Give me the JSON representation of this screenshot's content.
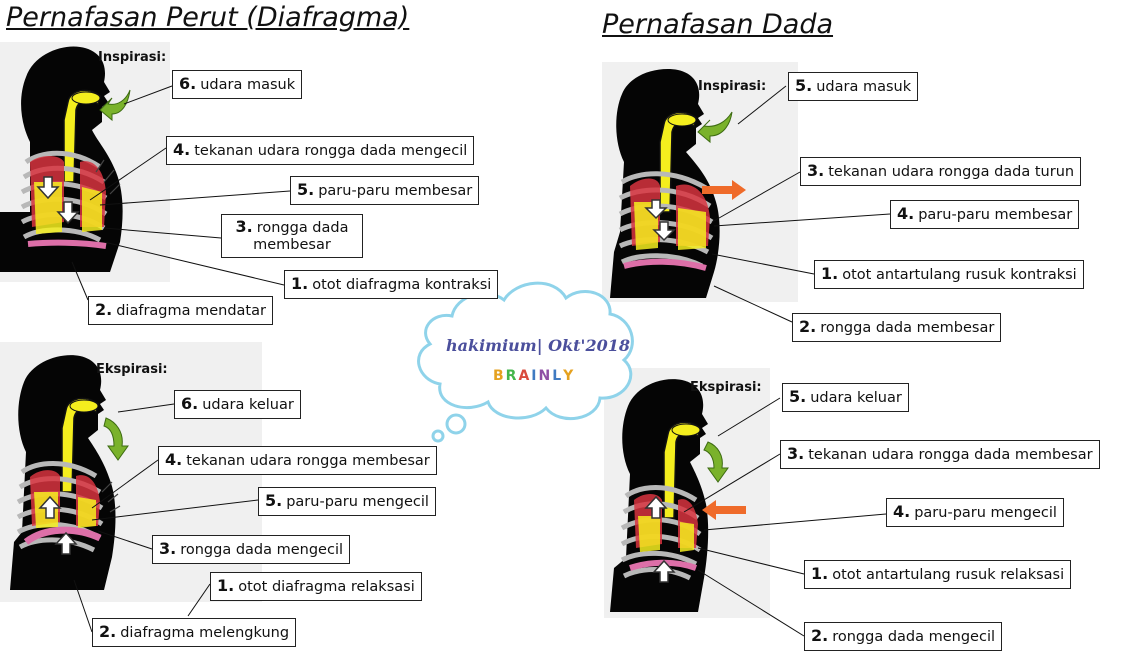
{
  "titles": {
    "left": "Pernafasan Perut (Diafragma)",
    "right": "Pernafasan Dada"
  },
  "watermark": {
    "line1": "hakimium| Okt'2018",
    "brand_letters": [
      "B",
      "R",
      "A",
      "I",
      "N",
      "L",
      "Y"
    ],
    "brand_colors": [
      "#e5a11f",
      "#43b64b",
      "#d94b3d",
      "#3f7ac2",
      "#8e4fa5",
      "#3f7ac2",
      "#e5a11f"
    ]
  },
  "colors": {
    "airway": "#f4ee1e",
    "lung": "#d8343f",
    "diaphragm": "#dd6fa8",
    "rib": "#b8b8b8",
    "arrow_green": "#7ab22b",
    "arrow_orange": "#ef6b2a",
    "silhouette": "#050505"
  },
  "panels": {
    "perut_inspirasi": {
      "phase": "Inspirasi:",
      "labels": [
        {
          "num": "6.",
          "text": "udara masuk"
        },
        {
          "num": "4.",
          "text": "tekanan udara rongga dada mengecil"
        },
        {
          "num": "5.",
          "text": "paru-paru membesar"
        },
        {
          "num": "3.",
          "text": "rongga dada membesar"
        },
        {
          "num": "1.",
          "text": "otot diafragma kontraksi"
        },
        {
          "num": "2.",
          "text": "diafragma mendatar"
        }
      ]
    },
    "perut_ekspirasi": {
      "phase": "Ekspirasi:",
      "labels": [
        {
          "num": "6.",
          "text": "udara keluar"
        },
        {
          "num": "4.",
          "text": "tekanan udara rongga membesar"
        },
        {
          "num": "5.",
          "text": "paru-paru mengecil"
        },
        {
          "num": "3.",
          "text": "rongga dada mengecil"
        },
        {
          "num": "1.",
          "text": "otot diafragma relaksasi"
        },
        {
          "num": "2.",
          "text": "diafragma melengkung"
        }
      ]
    },
    "dada_inspirasi": {
      "phase": "Inspirasi:",
      "labels": [
        {
          "num": "5.",
          "text": "udara masuk"
        },
        {
          "num": "3.",
          "text": "tekanan udara rongga dada turun"
        },
        {
          "num": "4.",
          "text": "paru-paru membesar"
        },
        {
          "num": "1.",
          "text": "otot antartulang rusuk kontraksi"
        },
        {
          "num": "2.",
          "text": "rongga dada membesar"
        }
      ]
    },
    "dada_ekspirasi": {
      "phase": "Ekspirasi:",
      "labels": [
        {
          "num": "5.",
          "text": "udara keluar"
        },
        {
          "num": "3.",
          "text": "tekanan udara rongga dada membesar"
        },
        {
          "num": "4.",
          "text": "paru-paru mengecil"
        },
        {
          "num": "1.",
          "text": "otot antartulang rusuk relaksasi"
        },
        {
          "num": "2.",
          "text": "rongga dada mengecil"
        }
      ]
    }
  }
}
